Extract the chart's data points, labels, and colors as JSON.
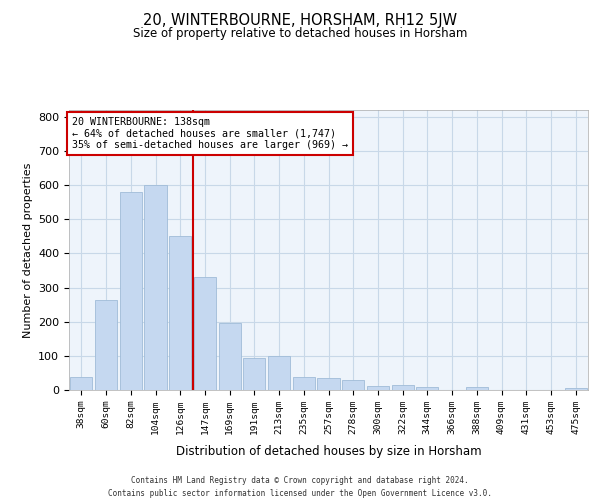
{
  "title": "20, WINTERBOURNE, HORSHAM, RH12 5JW",
  "subtitle": "Size of property relative to detached houses in Horsham",
  "xlabel": "Distribution of detached houses by size in Horsham",
  "ylabel": "Number of detached properties",
  "categories": [
    "38sqm",
    "60sqm",
    "82sqm",
    "104sqm",
    "126sqm",
    "147sqm",
    "169sqm",
    "191sqm",
    "213sqm",
    "235sqm",
    "257sqm",
    "278sqm",
    "300sqm",
    "322sqm",
    "344sqm",
    "366sqm",
    "388sqm",
    "409sqm",
    "431sqm",
    "453sqm",
    "475sqm"
  ],
  "values": [
    37,
    265,
    580,
    600,
    450,
    330,
    195,
    95,
    100,
    37,
    35,
    30,
    13,
    15,
    10,
    0,
    8,
    0,
    0,
    0,
    5
  ],
  "bar_color": "#c5d8f0",
  "bar_edgecolor": "#a0bcd8",
  "grid_color": "#c8d8e8",
  "bg_color": "#eef4fb",
  "annotation_box_text": "20 WINTERBOURNE: 138sqm\n← 64% of detached houses are smaller (1,747)\n35% of semi-detached houses are larger (969) →",
  "annotation_box_color": "#ffffff",
  "annotation_box_edgecolor": "#cc0000",
  "vline_x": 4.5,
  "vline_color": "#cc0000",
  "ylim": [
    0,
    820
  ],
  "yticks": [
    0,
    100,
    200,
    300,
    400,
    500,
    600,
    700,
    800
  ],
  "footer_line1": "Contains HM Land Registry data © Crown copyright and database right 2024.",
  "footer_line2": "Contains public sector information licensed under the Open Government Licence v3.0."
}
